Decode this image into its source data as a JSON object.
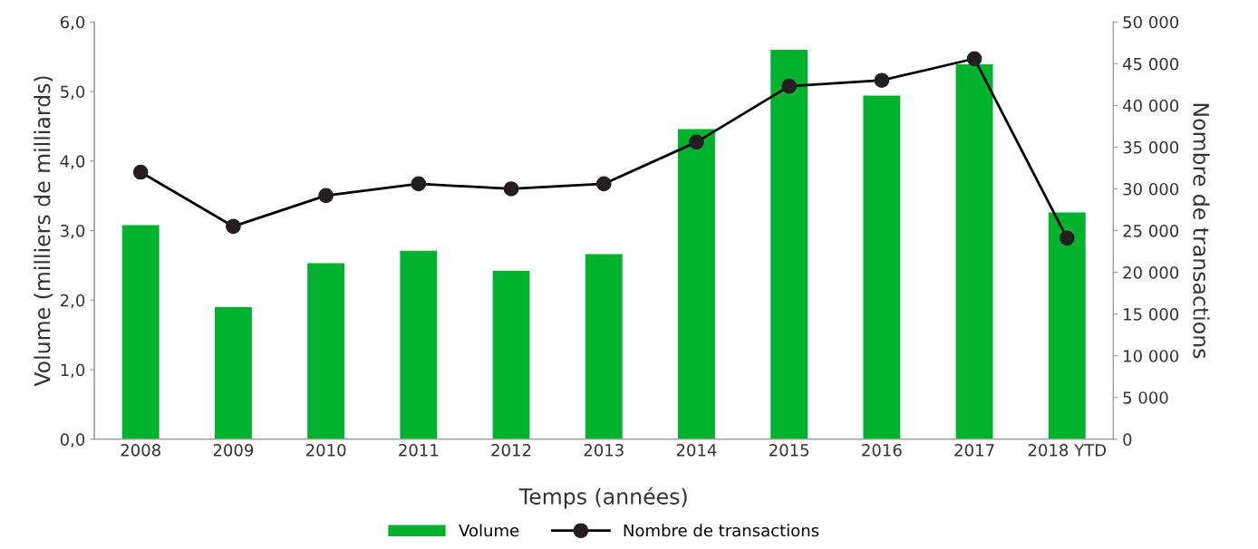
{
  "chart_data": {
    "type": "bar",
    "xlabel": "Temps (années)",
    "ylabel": "Volume (milliers de milliards)",
    "y2label": "Nombre de transactions",
    "categories": [
      "2008",
      "2009",
      "2010",
      "2011",
      "2012",
      "2013",
      "2014",
      "2015",
      "2016",
      "2017",
      "2018 YTD"
    ],
    "series": [
      {
        "name": "Volume",
        "color": "#00b22d",
        "values": [
          3.08,
          1.9,
          2.53,
          2.71,
          2.42,
          2.66,
          4.46,
          5.6,
          4.94,
          5.39,
          3.26
        ]
      },
      {
        "name": "Nombre de transactions",
        "type": "line",
        "axis": "y2",
        "color": "#000000",
        "marker": "circle",
        "values": [
          32000,
          25500,
          29200,
          30600,
          30000,
          30600,
          35600,
          42300,
          43000,
          45600,
          24100
        ]
      }
    ],
    "ylim": [
      0,
      6
    ],
    "yticks": [
      {
        "value": 0,
        "label": "0,0"
      },
      {
        "value": 1,
        "label": "1,0"
      },
      {
        "value": 2,
        "label": "2,0"
      },
      {
        "value": 3,
        "label": "3,0"
      },
      {
        "value": 4,
        "label": "4,0"
      },
      {
        "value": 5,
        "label": "5,0"
      },
      {
        "value": 6,
        "label": "6,0"
      }
    ],
    "y2lim": [
      0,
      50000
    ],
    "y2ticks": [
      0,
      {
        "value": 5000,
        "label": "5 000"
      },
      {
        "value": 10000,
        "label": "10 000"
      },
      {
        "value": 15000,
        "label": "15 000"
      },
      {
        "value": 20000,
        "label": "20 000"
      },
      {
        "value": 25000,
        "label": "25 000"
      },
      {
        "value": 30000,
        "label": "30 000"
      },
      {
        "value": 35000,
        "label": "35 000"
      },
      {
        "value": 40000,
        "label": "40 000"
      },
      {
        "value": 45000,
        "label": "45 000"
      },
      {
        "value": 50000,
        "label": "50 000"
      }
    ],
    "grid": false,
    "legend": "bottom"
  }
}
